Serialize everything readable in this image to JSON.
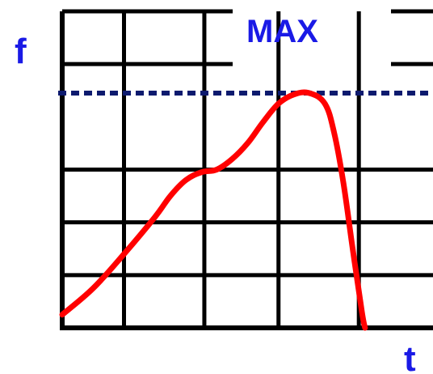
{
  "chart_data": {
    "type": "line",
    "xlabel": "t",
    "ylabel": "f",
    "annotation": "MAX",
    "grid": true,
    "colors": {
      "curve": "#ff0000",
      "grid": "#000000",
      "max_line": "#0d1a6e",
      "labels": "#1a1ae6"
    },
    "series": [
      {
        "x": [
          0,
          0.1,
          0.2,
          0.3,
          0.35,
          0.4,
          0.45,
          0.5,
          0.55,
          0.6,
          0.65,
          0.7,
          0.75,
          0.8,
          0.85,
          0.88,
          0.91,
          0.94,
          0.97,
          0.98
        ],
        "y": [
          0.05,
          0.15,
          0.28,
          0.42,
          0.5,
          0.56,
          0.59,
          0.6,
          0.64,
          0.7,
          0.78,
          0.85,
          0.885,
          0.89,
          0.85,
          0.74,
          0.55,
          0.3,
          0.06,
          0.0
        ]
      }
    ],
    "max_level": 0.89,
    "xlim": [
      0,
      1.2
    ],
    "ylim": [
      0,
      1.2
    ],
    "grid_x": [
      0,
      0.2,
      0.46,
      0.7,
      0.96
    ],
    "grid_y": [
      0.2,
      0.4,
      0.6,
      1.0,
      1.2
    ]
  }
}
